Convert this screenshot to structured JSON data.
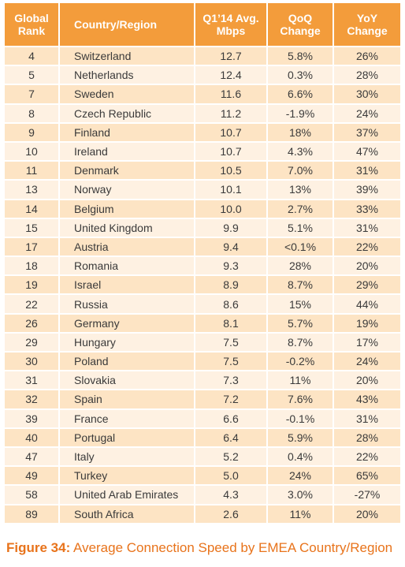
{
  "table": {
    "headers": [
      "Global Rank",
      "Country/Region",
      "Q1’14 Avg. Mbps",
      "QoQ Change",
      "YoY Change"
    ],
    "rows": [
      [
        "4",
        "Switzerland",
        "12.7",
        "5.8%",
        "26%"
      ],
      [
        "5",
        "Netherlands",
        "12.4",
        "0.3%",
        "28%"
      ],
      [
        "7",
        "Sweden",
        "11.6",
        "6.6%",
        "30%"
      ],
      [
        "8",
        "Czech Republic",
        "11.2",
        "-1.9%",
        "24%"
      ],
      [
        "9",
        "Finland",
        "10.7",
        "18%",
        "37%"
      ],
      [
        "10",
        "Ireland",
        "10.7",
        "4.3%",
        "47%"
      ],
      [
        "11",
        "Denmark",
        "10.5",
        "7.0%",
        "31%"
      ],
      [
        "13",
        "Norway",
        "10.1",
        "13%",
        "39%"
      ],
      [
        "14",
        "Belgium",
        "10.0",
        "2.7%",
        "33%"
      ],
      [
        "15",
        "United Kingdom",
        "9.9",
        "5.1%",
        "31%"
      ],
      [
        "17",
        "Austria",
        "9.4",
        "<0.1%",
        "22%"
      ],
      [
        "18",
        "Romania",
        "9.3",
        "28%",
        "20%"
      ],
      [
        "19",
        "Israel",
        "8.9",
        "8.7%",
        "29%"
      ],
      [
        "22",
        "Russia",
        "8.6",
        "15%",
        "44%"
      ],
      [
        "26",
        "Germany",
        "8.1",
        "5.7%",
        "19%"
      ],
      [
        "29",
        "Hungary",
        "7.5",
        "8.7%",
        "17%"
      ],
      [
        "30",
        "Poland",
        "7.5",
        "-0.2%",
        "24%"
      ],
      [
        "31",
        "Slovakia",
        "7.3",
        "11%",
        "20%"
      ],
      [
        "32",
        "Spain",
        "7.2",
        "7.6%",
        "43%"
      ],
      [
        "39",
        "France",
        "6.6",
        "-0.1%",
        "31%"
      ],
      [
        "40",
        "Portugal",
        "6.4",
        "5.9%",
        "28%"
      ],
      [
        "47",
        "Italy",
        "5.2",
        "0.4%",
        "22%"
      ],
      [
        "49",
        "Turkey",
        "5.0",
        "24%",
        "65%"
      ],
      [
        "58",
        "United Arab Emirates",
        "4.3",
        "3.0%",
        "-27%"
      ],
      [
        "89",
        "South Africa",
        "2.6",
        "11%",
        "20%"
      ]
    ]
  },
  "caption": {
    "label": "Figure 34:",
    "text": " Average Connection Speed by EMEA Country/Region"
  },
  "colors": {
    "header_bg": "#f39c3b",
    "row_odd": "#fde4c4",
    "row_even": "#fef1e2",
    "caption": "#e8731b"
  }
}
